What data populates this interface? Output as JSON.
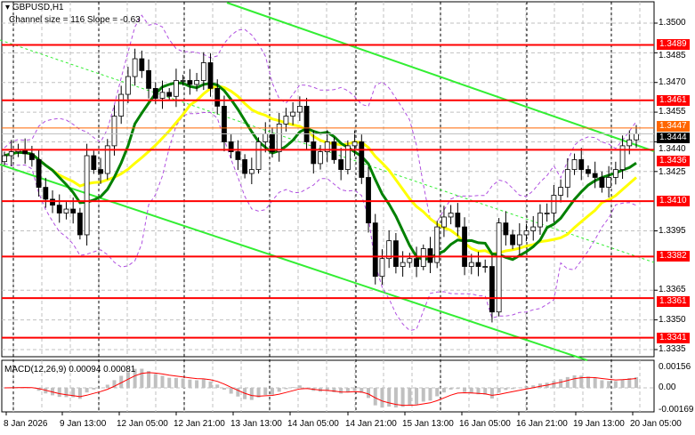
{
  "header": {
    "symbol_timeframe": "GBPUSD,H1",
    "indicator_text": "Channel size = 116 Slope = -0.63"
  },
  "chart_data": {
    "type": "candlestick",
    "title": "GBPUSD,H1",
    "ylim": [
      1.3328,
      1.3511
    ],
    "y_ticks": [
      "1.3500",
      "1.3485",
      "1.3470",
      "1.3455",
      "1.3440",
      "1.3425",
      "1.3395",
      "1.3365",
      "1.3350",
      "1.3335"
    ],
    "x_ticks": [
      "8 Jan 2026",
      "9 Jan 13:00",
      "12 Jan 05:00",
      "12 Jan 21:00",
      "13 Jan 13:00",
      "14 Jan 05:00",
      "14 Jan 21:00",
      "15 Jan 13:00",
      "16 Jan 05:00",
      "16 Jan 21:00",
      "19 Jan 13:00",
      "20 Jan 05:00"
    ],
    "first_open": 1.343,
    "closes": [
      1.3433,
      1.3435,
      1.3436,
      1.3434,
      1.3431,
      1.3417,
      1.3411,
      1.3408,
      1.3404,
      1.3406,
      1.3404,
      1.3393,
      1.3433,
      1.3426,
      1.3424,
      1.3438,
      1.3453,
      1.3464,
      1.3473,
      1.3482,
      1.3476,
      1.3467,
      1.3462,
      1.3465,
      1.3463,
      1.3471,
      1.3471,
      1.3469,
      1.3471,
      1.348,
      1.3467,
      1.3458,
      1.344,
      1.3435,
      1.3431,
      1.3424,
      1.3426,
      1.344,
      1.3444,
      1.3435,
      1.3449,
      1.3453,
      1.3455,
      1.3458,
      1.344,
      1.3429,
      1.3435,
      1.344,
      1.3431,
      1.3426,
      1.3438,
      1.344,
      1.3422,
      1.3399,
      1.3372,
      1.3381,
      1.339,
      1.3377,
      1.3379,
      1.3381,
      1.3377,
      1.3386,
      1.3379,
      1.3397,
      1.3402,
      1.3404,
      1.3397,
      1.3377,
      1.3379,
      1.3377,
      1.3377,
      1.3354,
      1.3399,
      1.3393,
      1.3388,
      1.3393,
      1.3395,
      1.3397,
      1.3404,
      1.3404,
      1.3413,
      1.3417,
      1.3426,
      1.3431,
      1.3426,
      1.3424,
      1.3422,
      1.3417,
      1.3422,
      1.3426,
      1.3438,
      1.3441,
      1.3444
    ],
    "levels": [
      {
        "value": "1.3489",
        "color": "#ff0000"
      },
      {
        "value": "1.3461",
        "color": "#ff0000"
      },
      {
        "value": "1.3436",
        "color": "#ff0000"
      },
      {
        "value": "1.3410",
        "color": "#ff0000"
      },
      {
        "value": "1.3382",
        "color": "#ff0000"
      },
      {
        "value": "1.3361",
        "color": "#ff0000"
      },
      {
        "value": "1.3341",
        "color": "#ff0000"
      }
    ],
    "ask_line": {
      "value": "1.3447",
      "color": "#ff6600"
    },
    "bid_line": {
      "value": "1.3444",
      "color": "#000000"
    },
    "colors": {
      "ma_fast": "#008000",
      "ma_slow": "#ffff00",
      "bands": "#b050e0",
      "channel": "#33ee33",
      "macd_hist": "#c0c0c0",
      "macd_signal": "#ff0000"
    },
    "macd": {
      "label": "MACD(12,26,9) 0.00094 0.00081",
      "y_ticks": [
        "0.00156",
        "0.00",
        "-0.00169"
      ],
      "ylim": [
        -0.00169,
        0.00156
      ]
    }
  }
}
